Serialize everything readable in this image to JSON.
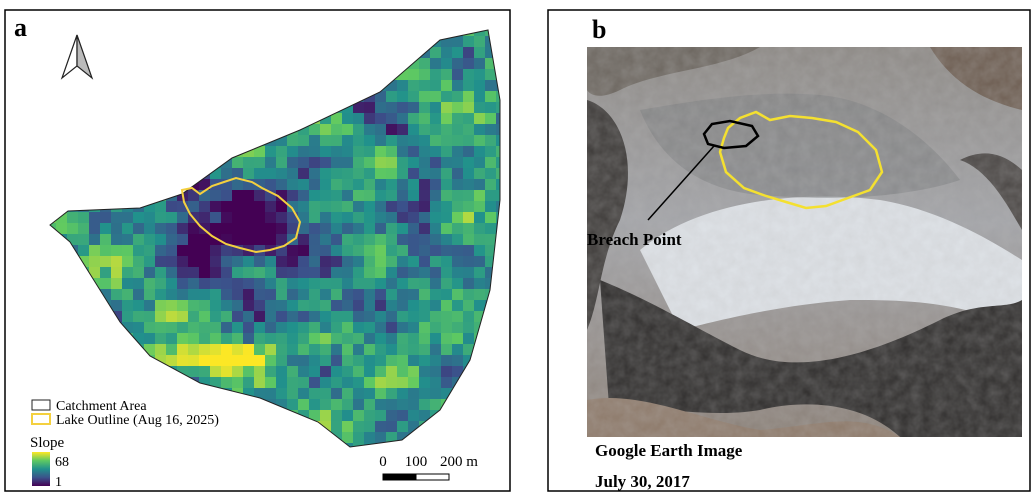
{
  "panel_a": {
    "label": "a",
    "legend": {
      "catchment": "Catchment Area",
      "lake": "Lake Outline (Aug 16, 2025)",
      "slope_title": "Slope",
      "slope_max": 68,
      "slope_min": 1
    },
    "scale_bar": {
      "labels": [
        0,
        100,
        "200 m"
      ]
    }
  },
  "panel_b": {
    "label": "b",
    "annotation": "Breach Point",
    "caption": [
      "Google Earth Image",
      "July 30, 2017"
    ]
  }
}
